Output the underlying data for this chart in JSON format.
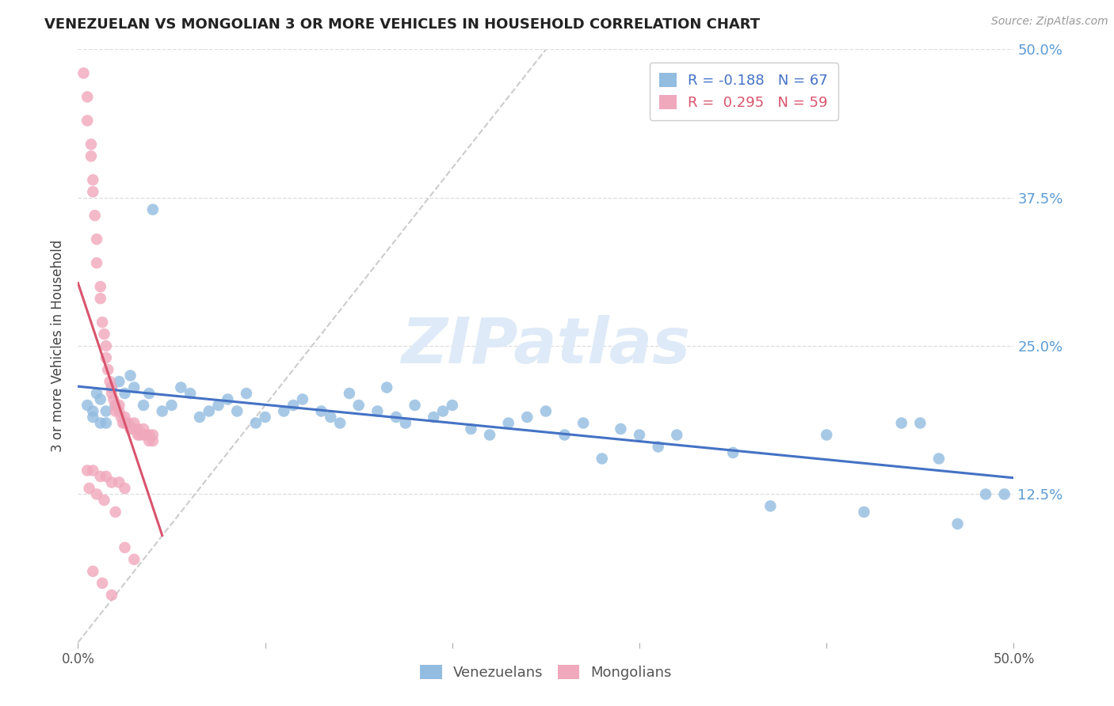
{
  "title": "VENEZUELAN VS MONGOLIAN 3 OR MORE VEHICLES IN HOUSEHOLD CORRELATION CHART",
  "source": "Source: ZipAtlas.com",
  "ylabel": "3 or more Vehicles in Household",
  "x_min": 0.0,
  "x_max": 0.5,
  "y_min": 0.0,
  "y_max": 0.5,
  "y_tick_labels_right": [
    "50.0%",
    "37.5%",
    "25.0%",
    "12.5%"
  ],
  "y_ticks_right": [
    0.5,
    0.375,
    0.25,
    0.125
  ],
  "venezuelan_R": -0.188,
  "venezuelan_N": 67,
  "mongolian_R": 0.295,
  "mongolian_N": 59,
  "venezuelan_color": "#92bce0",
  "mongolian_color": "#f0a8bc",
  "venezuelan_line_color": "#4472c4",
  "mongolian_line_color": "#d9546e",
  "watermark_color": "#deeaf7",
  "venezuelan_x": [
    0.005,
    0.008,
    0.01,
    0.012,
    0.015,
    0.012,
    0.008,
    0.018,
    0.02,
    0.015,
    0.022,
    0.025,
    0.03,
    0.028,
    0.035,
    0.04,
    0.038,
    0.045,
    0.05,
    0.055,
    0.06,
    0.065,
    0.07,
    0.075,
    0.08,
    0.085,
    0.09,
    0.095,
    0.1,
    0.11,
    0.115,
    0.12,
    0.13,
    0.135,
    0.14,
    0.145,
    0.15,
    0.16,
    0.165,
    0.17,
    0.175,
    0.18,
    0.19,
    0.195,
    0.2,
    0.21,
    0.22,
    0.23,
    0.24,
    0.25,
    0.26,
    0.27,
    0.28,
    0.29,
    0.3,
    0.31,
    0.32,
    0.35,
    0.37,
    0.4,
    0.42,
    0.44,
    0.45,
    0.46,
    0.47,
    0.485,
    0.495
  ],
  "venezuelan_y": [
    0.2,
    0.195,
    0.21,
    0.185,
    0.195,
    0.205,
    0.19,
    0.215,
    0.2,
    0.185,
    0.22,
    0.21,
    0.215,
    0.225,
    0.2,
    0.365,
    0.21,
    0.195,
    0.2,
    0.215,
    0.21,
    0.19,
    0.195,
    0.2,
    0.205,
    0.195,
    0.21,
    0.185,
    0.19,
    0.195,
    0.2,
    0.205,
    0.195,
    0.19,
    0.185,
    0.21,
    0.2,
    0.195,
    0.215,
    0.19,
    0.185,
    0.2,
    0.19,
    0.195,
    0.2,
    0.18,
    0.175,
    0.185,
    0.19,
    0.195,
    0.175,
    0.185,
    0.155,
    0.18,
    0.175,
    0.165,
    0.175,
    0.16,
    0.115,
    0.175,
    0.11,
    0.185,
    0.185,
    0.155,
    0.1,
    0.125,
    0.125
  ],
  "mongolian_x": [
    0.003,
    0.005,
    0.005,
    0.007,
    0.007,
    0.008,
    0.008,
    0.009,
    0.01,
    0.01,
    0.012,
    0.012,
    0.013,
    0.014,
    0.015,
    0.015,
    0.016,
    0.017,
    0.018,
    0.018,
    0.019,
    0.02,
    0.02,
    0.022,
    0.022,
    0.023,
    0.024,
    0.025,
    0.025,
    0.027,
    0.028,
    0.03,
    0.03,
    0.032,
    0.032,
    0.033,
    0.035,
    0.035,
    0.036,
    0.038,
    0.038,
    0.04,
    0.04,
    0.005,
    0.008,
    0.012,
    0.015,
    0.018,
    0.022,
    0.025,
    0.006,
    0.01,
    0.014,
    0.02,
    0.025,
    0.03,
    0.008,
    0.013,
    0.018
  ],
  "mongolian_y": [
    0.48,
    0.46,
    0.44,
    0.42,
    0.41,
    0.39,
    0.38,
    0.36,
    0.34,
    0.32,
    0.3,
    0.29,
    0.27,
    0.26,
    0.25,
    0.24,
    0.23,
    0.22,
    0.215,
    0.21,
    0.205,
    0.2,
    0.195,
    0.2,
    0.195,
    0.19,
    0.185,
    0.185,
    0.19,
    0.185,
    0.18,
    0.18,
    0.185,
    0.18,
    0.175,
    0.175,
    0.18,
    0.175,
    0.175,
    0.17,
    0.175,
    0.17,
    0.175,
    0.145,
    0.145,
    0.14,
    0.14,
    0.135,
    0.135,
    0.13,
    0.13,
    0.125,
    0.12,
    0.11,
    0.08,
    0.07,
    0.06,
    0.05,
    0.04
  ]
}
